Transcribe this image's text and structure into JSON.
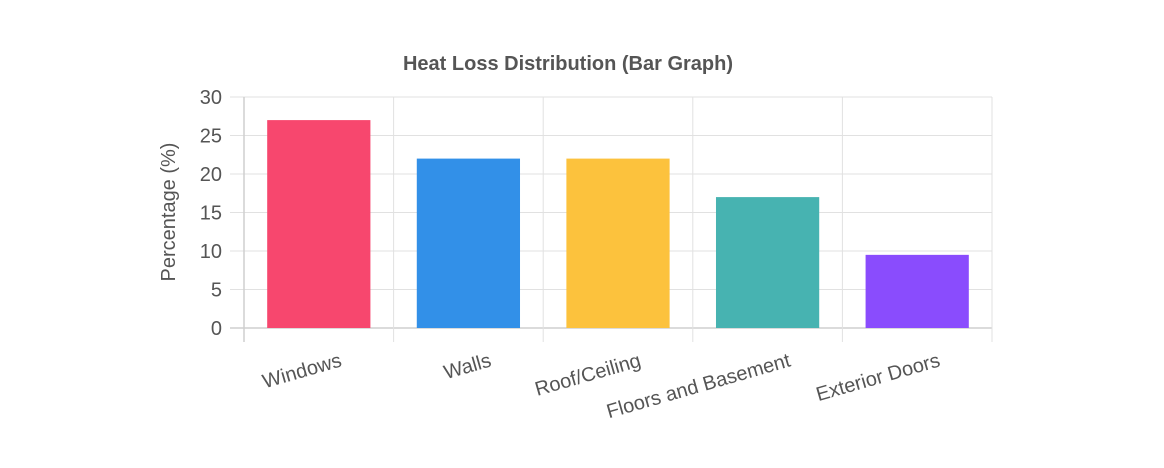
{
  "chart_data": {
    "type": "bar",
    "title": "Heat Loss Distribution (Bar Graph)",
    "xlabel": "",
    "ylabel": "Percentage (%)",
    "ylim": [
      0,
      30
    ],
    "yticks": [
      0,
      5,
      10,
      15,
      20,
      25,
      30
    ],
    "categories": [
      "Windows",
      "Walls",
      "Roof/Ceiling",
      "Floors and Basement",
      "Exterior Doors"
    ],
    "values": [
      27,
      22,
      22,
      17,
      9.5
    ],
    "colors": [
      "#f7476e",
      "#3290e8",
      "#fcc23d",
      "#47b3b1",
      "#8a4cfd"
    ],
    "grid": true,
    "legend": "none"
  }
}
